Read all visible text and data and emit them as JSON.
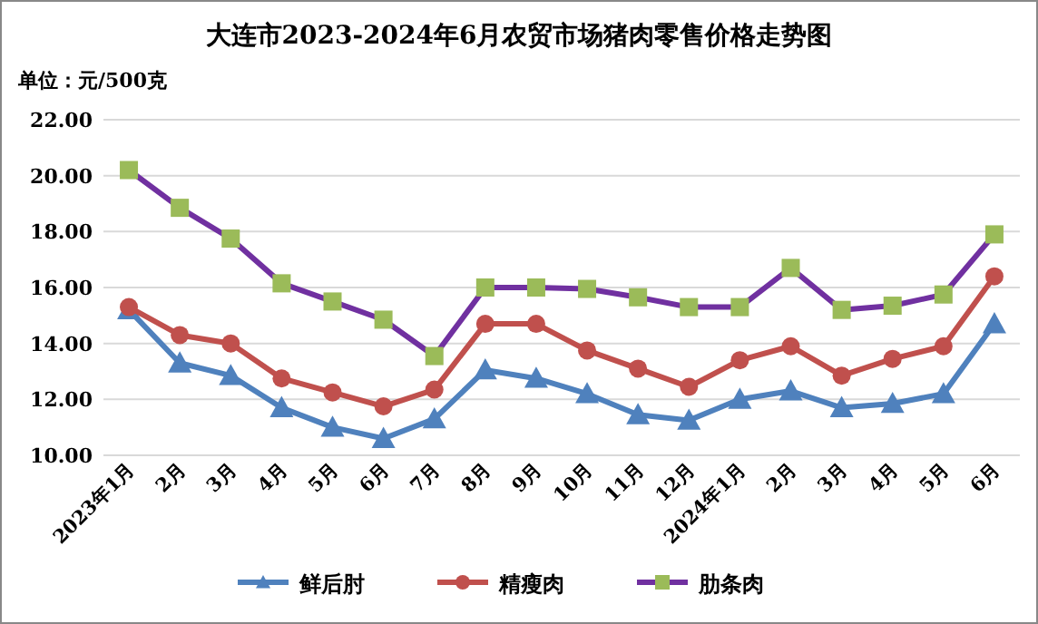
{
  "chart_data": {
    "type": "line",
    "title": "大连市2023-2024年6月农贸市场猪肉零售价格走势图",
    "annotations": [
      "单位：元/500克"
    ],
    "categories": [
      "2023年1月",
      "2月",
      "3月",
      "4月",
      "5月",
      "6月",
      "7月",
      "8月",
      "9月",
      "10月",
      "11月",
      "12月",
      "2024年1月",
      "2月",
      "3月",
      "4月",
      "5月",
      "6月"
    ],
    "series": [
      {
        "name": "鲜后肘",
        "color": "#4f81bd",
        "marker": "triangle",
        "values": [
          15.2,
          13.3,
          12.85,
          11.7,
          11.0,
          10.6,
          11.3,
          13.05,
          12.75,
          12.2,
          11.45,
          11.25,
          12.0,
          12.3,
          11.7,
          11.85,
          12.2,
          14.7
        ]
      },
      {
        "name": "精瘦肉",
        "color": "#c0504d",
        "marker": "circle",
        "values": [
          15.3,
          14.3,
          14.0,
          12.75,
          12.25,
          11.75,
          12.35,
          14.7,
          14.7,
          13.75,
          13.1,
          12.45,
          13.4,
          13.9,
          12.85,
          13.45,
          13.9,
          16.4
        ]
      },
      {
        "name": "肋条肉",
        "color": "#7030a0",
        "marker": "square",
        "colors": [
          "#9bbb59",
          "#9bbb59",
          "#9bbb59",
          "#9bbb59",
          "#9bbb59",
          "#9bbb59",
          "#9bbb59",
          "#9bbb59",
          "#9bbb59",
          "#9bbb59",
          "#9bbb59",
          "#9bbb59",
          "#9bbb59",
          "#9bbb59",
          "#9bbb59",
          "#9bbb59",
          "#9bbb59",
          "#9bbb59"
        ],
        "values": [
          20.2,
          18.85,
          17.75,
          16.15,
          15.5,
          14.85,
          13.55,
          16.0,
          16.0,
          15.95,
          15.65,
          15.3,
          15.3,
          16.7,
          15.2,
          15.35,
          15.75,
          17.9
        ]
      }
    ],
    "ylim": [
      10,
      22
    ],
    "yticks": [
      {
        "value": 10,
        "label": "10.00"
      },
      {
        "value": 12,
        "label": "12.00"
      },
      {
        "value": 14,
        "label": "14.00"
      },
      {
        "value": 16,
        "label": "16.00"
      },
      {
        "value": 18,
        "label": "18.00"
      },
      {
        "value": 20,
        "label": "20.00"
      },
      {
        "value": 22,
        "label": "22.00"
      }
    ],
    "grid": "y",
    "legend": "bottom",
    "line_style": "solid"
  }
}
